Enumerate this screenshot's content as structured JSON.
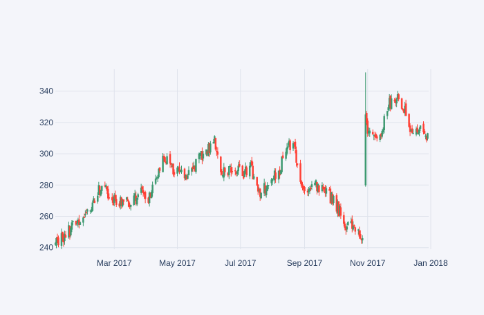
{
  "chart_data": {
    "type": "candlestick",
    "title": "",
    "xlabel": "",
    "ylabel": "",
    "xlim": [
      "2017-01-03",
      "2017-12-30"
    ],
    "ylim": [
      239,
      354
    ],
    "grid": true,
    "legend": "none",
    "colors": {
      "increasing": "#3d9970",
      "decreasing": "#ff4136",
      "grid": "#dfe3ec",
      "plot_background": "#f4f5fa",
      "tick_text": "#2a3f5f"
    },
    "x_ticks": [
      {
        "date": "2017-03-01",
        "label": "Mar 2017"
      },
      {
        "date": "2017-05-01",
        "label": "May 2017"
      },
      {
        "date": "2017-07-01",
        "label": "Jul 2017"
      },
      {
        "date": "2017-09-01",
        "label": "Sep 2017"
      },
      {
        "date": "2017-11-01",
        "label": "Nov 2017"
      },
      {
        "date": "2018-01-01",
        "label": "Jan 2018"
      }
    ],
    "y_ticks": [
      240,
      260,
      280,
      300,
      320,
      340
    ],
    "approximate_close_path": [
      [
        "2017-01-03",
        243
      ],
      [
        "2017-01-10",
        246
      ],
      [
        "2017-01-17",
        251
      ],
      [
        "2017-01-24",
        257
      ],
      [
        "2017-01-31",
        260
      ],
      [
        "2017-02-07",
        264
      ],
      [
        "2017-02-14",
        276
      ],
      [
        "2017-02-21",
        276
      ],
      [
        "2017-02-28",
        271
      ],
      [
        "2017-03-07",
        270
      ],
      [
        "2017-03-14",
        268
      ],
      [
        "2017-03-21",
        271
      ],
      [
        "2017-03-28",
        277
      ],
      [
        "2017-04-04",
        272
      ],
      [
        "2017-04-11",
        287
      ],
      [
        "2017-04-18",
        297
      ],
      [
        "2017-04-25",
        292
      ],
      [
        "2017-05-02",
        288
      ],
      [
        "2017-05-09",
        284
      ],
      [
        "2017-05-16",
        291
      ],
      [
        "2017-05-23",
        297
      ],
      [
        "2017-05-30",
        303
      ],
      [
        "2017-06-06",
        308
      ],
      [
        "2017-06-13",
        287
      ],
      [
        "2017-06-20",
        289
      ],
      [
        "2017-06-27",
        289
      ],
      [
        "2017-07-04",
        287
      ],
      [
        "2017-07-11",
        291
      ],
      [
        "2017-07-18",
        275
      ],
      [
        "2017-07-25",
        278
      ],
      [
        "2017-08-01",
        286
      ],
      [
        "2017-08-08",
        290
      ],
      [
        "2017-08-15",
        307
      ],
      [
        "2017-08-22",
        304
      ],
      [
        "2017-08-29",
        281
      ],
      [
        "2017-09-05",
        278
      ],
      [
        "2017-09-12",
        279
      ],
      [
        "2017-09-19",
        276
      ],
      [
        "2017-09-26",
        272
      ],
      [
        "2017-10-03",
        266
      ],
      [
        "2017-10-10",
        254
      ],
      [
        "2017-10-17",
        254
      ],
      [
        "2017-10-24",
        248
      ],
      [
        "2017-10-27",
        246
      ],
      [
        "2017-10-31",
        316
      ],
      [
        "2017-11-07",
        313
      ],
      [
        "2017-11-14",
        314
      ],
      [
        "2017-11-21",
        331
      ],
      [
        "2017-11-28",
        336
      ],
      [
        "2017-12-05",
        331
      ],
      [
        "2017-12-12",
        316
      ],
      [
        "2017-12-19",
        316
      ],
      [
        "2017-12-26",
        316
      ],
      [
        "2017-12-30",
        308
      ]
    ]
  }
}
